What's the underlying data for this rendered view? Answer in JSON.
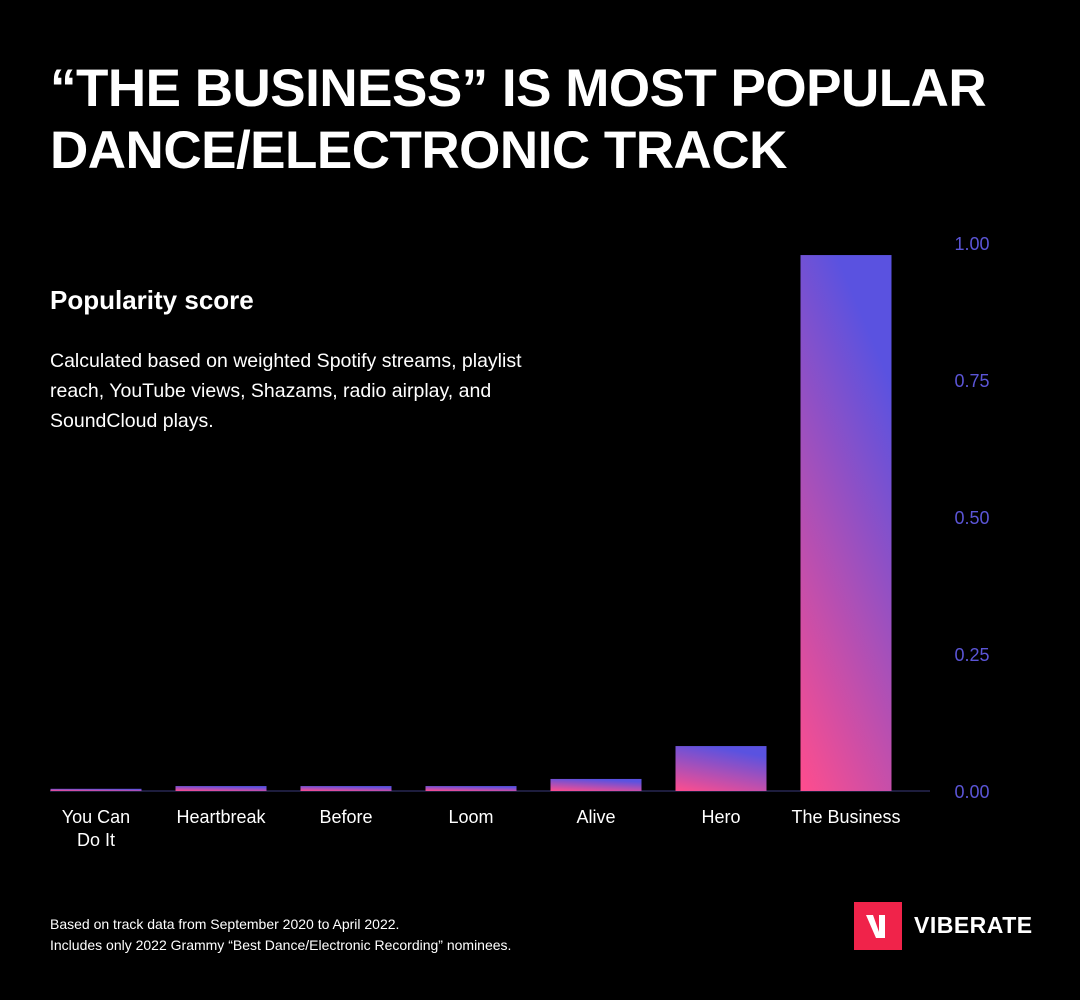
{
  "chart_data": {
    "type": "bar",
    "title": "“THE BUSINESS” IS MOST POPULAR DANCE/ELECTRONIC TRACK",
    "subtitle": "Popularity score",
    "description": "Calculated based on weighted Spotify streams, playlist reach, YouTube views, Shazams, radio airplay, and SoundCloud plays.",
    "categories": [
      [
        "You Can",
        "Do It"
      ],
      [
        "Heartbreak"
      ],
      [
        "Before"
      ],
      [
        "Loom"
      ],
      [
        "Alive"
      ],
      [
        "Hero"
      ],
      [
        "The Business"
      ]
    ],
    "values": [
      0.004,
      0.009,
      0.009,
      0.009,
      0.022,
      0.082,
      0.978
    ],
    "ylim": [
      0,
      1
    ],
    "yticks": [
      "0.00",
      "0.25",
      "0.50",
      "0.75",
      "1.00"
    ],
    "grid": true,
    "colors": {
      "bar_start": "#ff4d8d",
      "bar_end": "#5a52e0",
      "axis_label": "#5b55d6"
    }
  },
  "footer": [
    "Based on track data from September 2020 to April 2022.",
    "Includes only 2022 Grammy “Best Dance/Electronic Recording” nominees."
  ],
  "logo": {
    "text": "VIBERATE",
    "mark": "V"
  }
}
